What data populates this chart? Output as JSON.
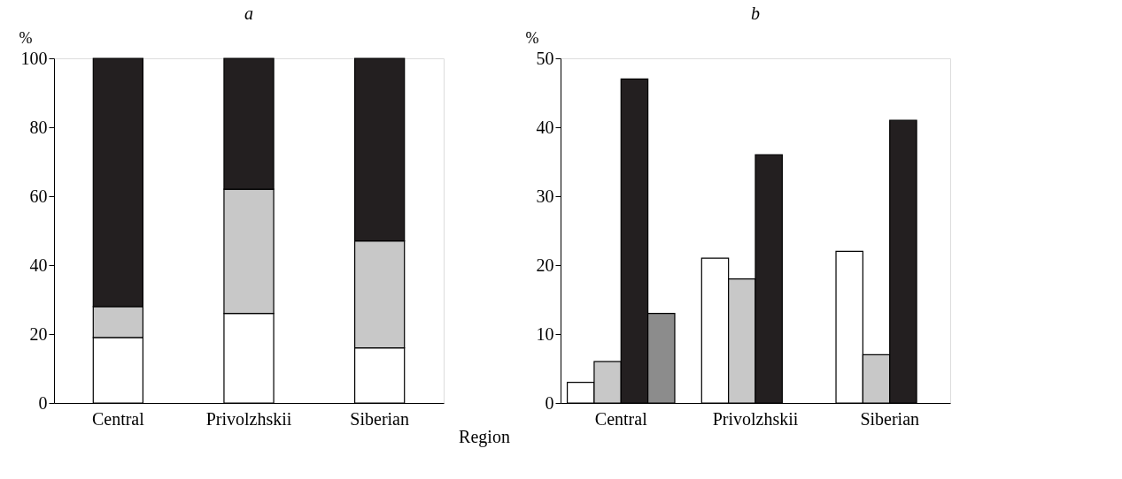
{
  "chart_data": [
    {
      "type": "bar",
      "title": "a",
      "xlabel": "Region",
      "ylabel": "%",
      "stacked": true,
      "categories": [
        "Central",
        "Privolzhskii",
        "Siberian"
      ],
      "series": [
        {
          "color": "#ffffff",
          "values": [
            19,
            26,
            16
          ]
        },
        {
          "color": "#c8c8c8",
          "values": [
            9,
            36,
            31
          ]
        },
        {
          "color": "#231f20",
          "values": [
            72,
            38,
            53
          ]
        }
      ],
      "ylim": [
        0,
        100
      ],
      "yticks": [
        0,
        20,
        40,
        60,
        80,
        100
      ],
      "grid": false,
      "legend": false
    },
    {
      "type": "bar",
      "title": "b",
      "ylabel": "%",
      "categories": [
        "Central",
        "Privolzhskii",
        "Siberian"
      ],
      "series": [
        {
          "color": "#ffffff",
          "values": [
            3,
            21,
            22
          ]
        },
        {
          "color": "#c8c8c8",
          "values": [
            6,
            18,
            7
          ]
        },
        {
          "color": "#231f20",
          "values": [
            47,
            36,
            41
          ]
        },
        {
          "color": "#8c8c8c",
          "values": [
            13,
            null,
            null
          ]
        }
      ],
      "ylim": [
        0,
        50
      ],
      "yticks": [
        0,
        10,
        20,
        30,
        40,
        50
      ],
      "grid": false,
      "legend": false
    }
  ]
}
